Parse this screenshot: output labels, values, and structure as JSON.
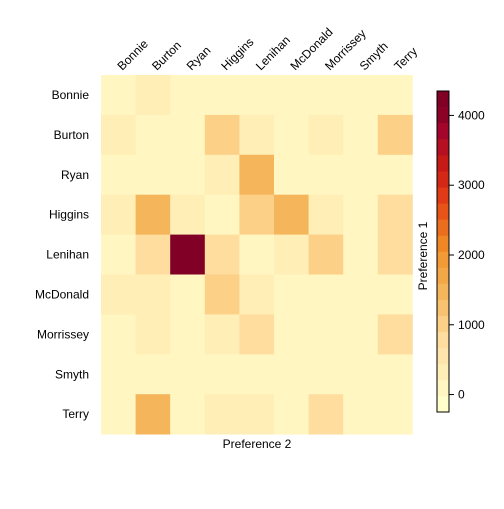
{
  "chart_data": {
    "type": "heatmap",
    "title": "",
    "xlabel": "Preference 2",
    "ylabel": "",
    "x_categories": [
      "Bonnie",
      "Burton",
      "Ryan",
      "Higgins",
      "Lenihan",
      "McDonald",
      "Morrissey",
      "Smyth",
      "Terry"
    ],
    "y_categories": [
      "Bonnie",
      "Burton",
      "Ryan",
      "Higgins",
      "Lenihan",
      "McDonald",
      "Morrissey",
      "Smyth",
      "Terry"
    ],
    "values": [
      [
        0,
        300,
        0,
        0,
        0,
        0,
        0,
        0,
        0
      ],
      [
        300,
        0,
        0,
        1000,
        300,
        0,
        300,
        0,
        1000
      ],
      [
        0,
        0,
        0,
        300,
        1500,
        0,
        0,
        0,
        0
      ],
      [
        300,
        1500,
        300,
        0,
        1000,
        1500,
        300,
        0,
        700
      ],
      [
        0,
        700,
        4300,
        700,
        0,
        300,
        1000,
        0,
        700
      ],
      [
        300,
        300,
        0,
        1000,
        300,
        0,
        0,
        0,
        0
      ],
      [
        0,
        300,
        0,
        300,
        700,
        0,
        0,
        0,
        700
      ],
      [
        0,
        0,
        0,
        0,
        0,
        0,
        0,
        0,
        0
      ],
      [
        0,
        1500,
        0,
        300,
        300,
        0,
        700,
        0,
        0
      ]
    ],
    "colorbar": {
      "label": "Preference 1",
      "ticks": [
        0,
        1000,
        2000,
        3000,
        4000
      ],
      "range": [
        -250,
        4350
      ],
      "bin_width": 250,
      "colors": [
        "#FFFFCC",
        "#FFF6C1",
        "#FFEEB6",
        "#FFE5AB",
        "#FEDD9F",
        "#FCD087",
        "#F8C271",
        "#F5B55B",
        "#F4A746",
        "#F29A35",
        "#EF8725",
        "#EB6D1E",
        "#E85418",
        "#E03B16",
        "#D32816",
        "#C61A16",
        "#B51021",
        "#A4062B",
        "#8C0227",
        "#800026"
      ]
    }
  }
}
